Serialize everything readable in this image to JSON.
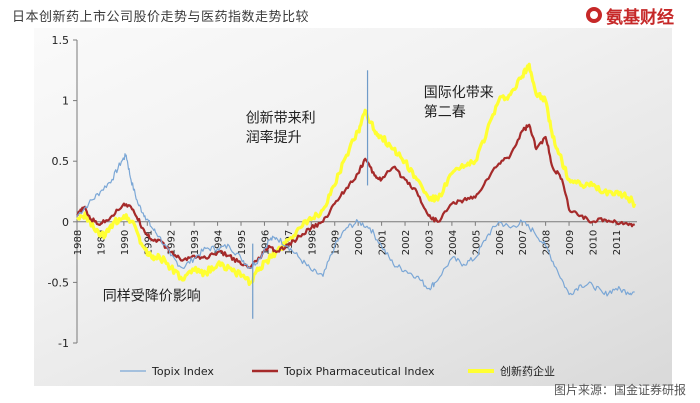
{
  "header": {
    "title": "日本创新药上市公司股价走势与医药指数走势比较",
    "brand_name": "氨基财经",
    "brand_icon": "logo-icon",
    "brand_color": "#c62828"
  },
  "footer": {
    "source": "图片来源：国金证券研报"
  },
  "chart_data": {
    "type": "line",
    "xlabel": "",
    "ylabel": "",
    "xlim": [
      1988,
      2011.9
    ],
    "ylim": [
      -1,
      1.5
    ],
    "yticks": [
      1.5,
      1,
      0.5,
      0,
      -0.5,
      -1
    ],
    "ytick_labels": [
      "1.5",
      "1",
      "0.5",
      "0",
      "-0.5",
      "-1"
    ],
    "xticks": [
      1988,
      1989,
      1990,
      1991,
      1992,
      1993,
      1994,
      1995,
      1996,
      1997,
      1998,
      1999,
      2000,
      2001,
      2002,
      2003,
      2004,
      2005,
      2006,
      2007,
      2008,
      2009,
      2010,
      2011
    ],
    "xtick_labels": [
      "1988",
      "1989",
      "1990",
      "1991",
      "1992",
      "1993",
      "1994",
      "1995",
      "1996",
      "1997",
      "1998",
      "1999",
      "2000",
      "2001",
      "2002",
      "2003",
      "2004",
      "2005",
      "2006",
      "2007",
      "2008",
      "2009",
      "2010",
      "2011"
    ],
    "grid": false,
    "legend_position": "bottom",
    "series": [
      {
        "name": "Topix Index",
        "color": "#7ba7d6",
        "points": [
          [
            1988.0,
            0.05
          ],
          [
            1988.5,
            0.15
          ],
          [
            1989.0,
            0.25
          ],
          [
            1989.5,
            0.35
          ],
          [
            1989.9,
            0.5
          ],
          [
            1990.1,
            0.55
          ],
          [
            1990.3,
            0.35
          ],
          [
            1990.6,
            0.15
          ],
          [
            1990.9,
            0.05
          ],
          [
            1991.2,
            -0.05
          ],
          [
            1991.5,
            -0.12
          ],
          [
            1992.0,
            -0.28
          ],
          [
            1992.5,
            -0.38
          ],
          [
            1993.0,
            -0.3
          ],
          [
            1993.5,
            -0.22
          ],
          [
            1994.0,
            -0.22
          ],
          [
            1994.5,
            -0.2
          ],
          [
            1995.0,
            -0.3
          ],
          [
            1995.4,
            -0.38
          ],
          [
            1995.8,
            -0.3
          ],
          [
            1996.2,
            -0.15
          ],
          [
            1996.5,
            -0.13
          ],
          [
            1997.0,
            -0.2
          ],
          [
            1997.5,
            -0.3
          ],
          [
            1998.0,
            -0.4
          ],
          [
            1998.5,
            -0.45
          ],
          [
            1999.0,
            -0.2
          ],
          [
            1999.5,
            -0.05
          ],
          [
            2000.0,
            0.0
          ],
          [
            2000.5,
            -0.05
          ],
          [
            2001.0,
            -0.2
          ],
          [
            2001.5,
            -0.35
          ],
          [
            2002.0,
            -0.4
          ],
          [
            2002.5,
            -0.45
          ],
          [
            2003.0,
            -0.55
          ],
          [
            2003.3,
            -0.5
          ],
          [
            2004.0,
            -0.3
          ],
          [
            2004.5,
            -0.35
          ],
          [
            2005.0,
            -0.3
          ],
          [
            2005.5,
            -0.12
          ],
          [
            2006.0,
            0.0
          ],
          [
            2006.5,
            -0.05
          ],
          [
            2007.0,
            0.0
          ],
          [
            2007.5,
            -0.08
          ],
          [
            2008.0,
            -0.2
          ],
          [
            2008.5,
            -0.4
          ],
          [
            2009.0,
            -0.6
          ],
          [
            2009.5,
            -0.52
          ],
          [
            2010.0,
            -0.52
          ],
          [
            2010.5,
            -0.6
          ],
          [
            2011.0,
            -0.55
          ],
          [
            2011.5,
            -0.58
          ],
          [
            2011.8,
            -0.58
          ]
        ]
      },
      {
        "name": "Topix Pharmaceutical Index",
        "color": "#a52a2a",
        "points": [
          [
            1988.0,
            0.05
          ],
          [
            1988.3,
            0.12
          ],
          [
            1988.6,
            0.02
          ],
          [
            1989.0,
            -0.02
          ],
          [
            1989.5,
            0.05
          ],
          [
            1990.0,
            0.15
          ],
          [
            1990.4,
            0.1
          ],
          [
            1990.8,
            -0.05
          ],
          [
            1991.2,
            -0.15
          ],
          [
            1991.5,
            -0.15
          ],
          [
            1992.0,
            -0.25
          ],
          [
            1992.5,
            -0.32
          ],
          [
            1993.0,
            -0.28
          ],
          [
            1993.5,
            -0.3
          ],
          [
            1994.0,
            -0.25
          ],
          [
            1994.5,
            -0.28
          ],
          [
            1995.0,
            -0.35
          ],
          [
            1995.4,
            -0.38
          ],
          [
            1995.8,
            -0.3
          ],
          [
            1996.2,
            -0.2
          ],
          [
            1996.5,
            -0.25
          ],
          [
            1997.0,
            -0.2
          ],
          [
            1997.5,
            -0.12
          ],
          [
            1998.0,
            -0.05
          ],
          [
            1998.5,
            0.0
          ],
          [
            1999.0,
            0.15
          ],
          [
            1999.5,
            0.28
          ],
          [
            2000.0,
            0.4
          ],
          [
            2000.3,
            0.52
          ],
          [
            2000.7,
            0.38
          ],
          [
            2001.0,
            0.35
          ],
          [
            2001.5,
            0.45
          ],
          [
            2002.0,
            0.35
          ],
          [
            2002.5,
            0.25
          ],
          [
            2003.0,
            0.05
          ],
          [
            2003.4,
            0.0
          ],
          [
            2004.0,
            0.15
          ],
          [
            2004.5,
            0.18
          ],
          [
            2005.0,
            0.2
          ],
          [
            2005.5,
            0.35
          ],
          [
            2006.0,
            0.48
          ],
          [
            2006.5,
            0.55
          ],
          [
            2007.0,
            0.75
          ],
          [
            2007.3,
            0.8
          ],
          [
            2007.6,
            0.6
          ],
          [
            2008.0,
            0.7
          ],
          [
            2008.3,
            0.45
          ],
          [
            2008.7,
            0.35
          ],
          [
            2009.0,
            0.1
          ],
          [
            2009.5,
            0.05
          ],
          [
            2010.0,
            0.0
          ],
          [
            2010.5,
            0.02
          ],
          [
            2011.0,
            0.0
          ],
          [
            2011.5,
            -0.02
          ],
          [
            2011.8,
            -0.02
          ]
        ]
      },
      {
        "name": "创新药企业",
        "color": "#ffff33",
        "points": [
          [
            1988.0,
            0.02
          ],
          [
            1988.4,
            0.05
          ],
          [
            1988.8,
            -0.08
          ],
          [
            1989.2,
            -0.12
          ],
          [
            1989.6,
            0.0
          ],
          [
            1990.0,
            0.05
          ],
          [
            1990.4,
            0.0
          ],
          [
            1990.8,
            -0.2
          ],
          [
            1991.2,
            -0.3
          ],
          [
            1991.5,
            -0.28
          ],
          [
            1992.0,
            -0.38
          ],
          [
            1992.5,
            -0.48
          ],
          [
            1993.0,
            -0.4
          ],
          [
            1993.5,
            -0.42
          ],
          [
            1994.0,
            -0.35
          ],
          [
            1994.5,
            -0.38
          ],
          [
            1995.0,
            -0.45
          ],
          [
            1995.4,
            -0.5
          ],
          [
            1995.8,
            -0.38
          ],
          [
            1996.2,
            -0.3
          ],
          [
            1996.5,
            -0.25
          ],
          [
            1997.0,
            -0.15
          ],
          [
            1997.5,
            -0.05
          ],
          [
            1998.0,
            0.02
          ],
          [
            1998.5,
            0.1
          ],
          [
            1999.0,
            0.3
          ],
          [
            1999.5,
            0.55
          ],
          [
            2000.0,
            0.75
          ],
          [
            2000.3,
            0.92
          ],
          [
            2000.7,
            0.75
          ],
          [
            2001.0,
            0.7
          ],
          [
            2001.5,
            0.6
          ],
          [
            2002.0,
            0.5
          ],
          [
            2002.5,
            0.35
          ],
          [
            2003.0,
            0.2
          ],
          [
            2003.4,
            0.18
          ],
          [
            2004.0,
            0.4
          ],
          [
            2004.5,
            0.45
          ],
          [
            2005.0,
            0.5
          ],
          [
            2005.5,
            0.75
          ],
          [
            2006.0,
            1.0
          ],
          [
            2006.5,
            1.05
          ],
          [
            2007.0,
            1.2
          ],
          [
            2007.3,
            1.3
          ],
          [
            2007.6,
            1.05
          ],
          [
            2008.0,
            1.0
          ],
          [
            2008.3,
            0.7
          ],
          [
            2008.7,
            0.5
          ],
          [
            2009.0,
            0.35
          ],
          [
            2009.5,
            0.3
          ],
          [
            2010.0,
            0.3
          ],
          [
            2010.5,
            0.25
          ],
          [
            2011.0,
            0.25
          ],
          [
            2011.5,
            0.2
          ],
          [
            2011.8,
            0.15
          ]
        ]
      }
    ],
    "event_lines": [
      {
        "x": 1995.5,
        "y": [
          -0.8,
          -0.18
        ]
      },
      {
        "x": 2000.4,
        "y": [
          0.3,
          1.25
        ]
      }
    ],
    "annotations": [
      {
        "text": "创新带来利",
        "x": 1995.2,
        "y": 0.82
      },
      {
        "text": "润率提升",
        "x": 1995.2,
        "y": 0.66
      },
      {
        "text": "国际化带来",
        "x": 2002.8,
        "y": 1.03
      },
      {
        "text": "第二春",
        "x": 2002.8,
        "y": 0.87
      },
      {
        "text": "同样受降价影响",
        "x": 1989.1,
        "y": -0.65
      }
    ]
  }
}
